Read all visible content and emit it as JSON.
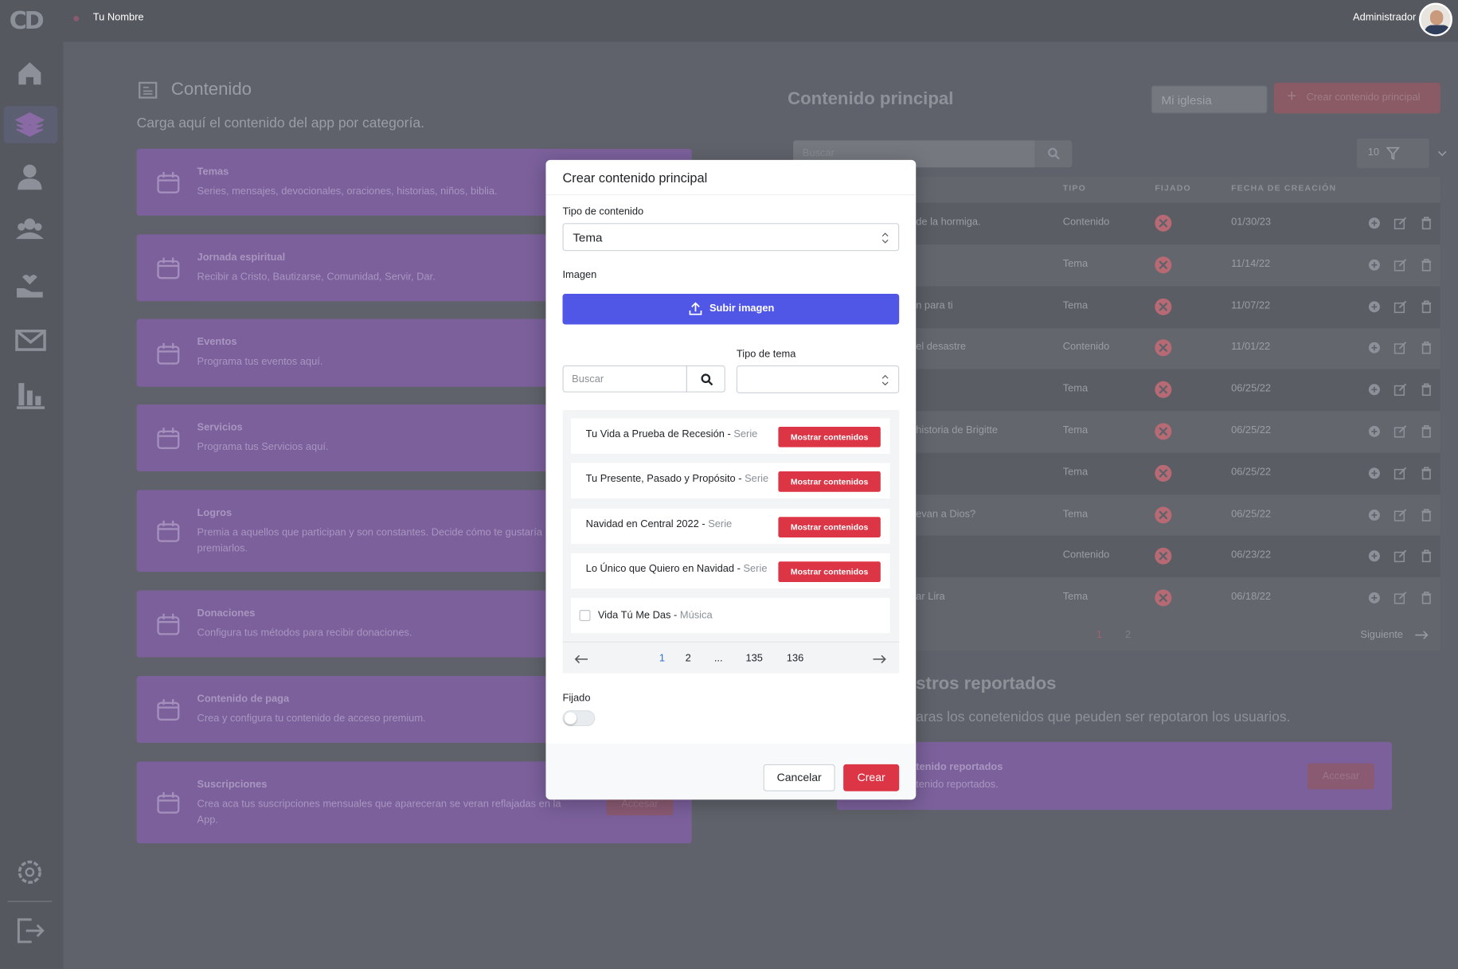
{
  "header": {
    "brand": "CD",
    "user_name": "Tu Nombre",
    "role": "Administrador"
  },
  "content_panel": {
    "title": "Contenido",
    "subtitle": "Carga aquí el contenido del app por categoría.",
    "categories": [
      {
        "title": "Temas",
        "description": "Series, mensajes, devocionales, oraciones, historias, niños, biblia."
      },
      {
        "title": "Jornada espiritual",
        "description": "Recibir a Cristo, Bautizarse, Comunidad, Servir, Dar."
      },
      {
        "title": "Eventos",
        "description": "Programa tus eventos aquí."
      },
      {
        "title": "Servicios",
        "description": "Programa tus Servicios aquí."
      },
      {
        "title": "Logros",
        "description": "Premia a aquellos que participan y son constantes. Decide cómo te gustaría premiarlos."
      },
      {
        "title": "Donaciones",
        "description": "Configura tus métodos para recibir donaciones."
      },
      {
        "title": "Contenido de paga",
        "description": "Crea y configura tu contenido de acceso premium."
      },
      {
        "title": "Suscripciones",
        "description": "Crea aca tus suscripciones mensuales que apareceran se veran reflajadas en la App.",
        "button": "Accesar"
      }
    ]
  },
  "main_content": {
    "title": "Contenido principal",
    "church_select": "Mi iglesia",
    "create_button": "Crear contenido principal",
    "search_placeholder": "Buscar",
    "page_size": "10",
    "columns": [
      "TIPO",
      "FIJADO",
      "FECHA DE CREACIÓN"
    ],
    "rows": [
      {
        "title": "de la hormiga.",
        "type": "Contenido",
        "date": "01/30/23"
      },
      {
        "type": "Tema",
        "date": "11/14/22"
      },
      {
        "title": "n para ti",
        "type": "Tema",
        "date": "11/07/22"
      },
      {
        "title": "el desastre",
        "type": "Contenido",
        "date": "11/01/22"
      },
      {
        "type": "Tema",
        "date": "06/25/22"
      },
      {
        "title": "historia de Brigitte",
        "type": "Tema",
        "date": "06/25/22"
      },
      {
        "type": "Tema",
        "date": "06/25/22"
      },
      {
        "title": "evan a Dios?",
        "type": "Tema",
        "date": "06/25/22"
      },
      {
        "type": "Contenido",
        "date": "06/23/22"
      },
      {
        "title": "ar Lira",
        "type": "Tema",
        "date": "06/18/22"
      }
    ],
    "pages": [
      "1",
      "2"
    ],
    "next": "Siguiente"
  },
  "reported": {
    "title": "stros reportados",
    "subtitle": "aras los conetenidos que peuden ser repotaron los usuarios.",
    "card_title": "tenido reportados",
    "card_description": "tenido reportados.",
    "button": "Accesar"
  },
  "modal": {
    "title": "Crear contenido principal",
    "content_type_label": "Tipo de contenido",
    "content_type_value": "Tema",
    "image_label": "Imagen",
    "upload_button": "Subir imagen",
    "search_placeholder": "Buscar",
    "topic_type_label": "Tipo de tema",
    "items": [
      {
        "title": "Tu Vida a Prueba de Recesión",
        "kind": "Serie",
        "button": "Mostrar contenidos"
      },
      {
        "title": "Tu Presente, Pasado y Propósito",
        "kind": "Serie",
        "button": "Mostrar contenidos"
      },
      {
        "title": "Navidad en Central 2022",
        "kind": "Serie",
        "button": "Mostrar contenidos"
      },
      {
        "title": "Lo Único que Quiero en Navidad",
        "kind": "Serie",
        "button": "Mostrar contenidos"
      },
      {
        "title": "Vida Tú Me Das",
        "kind": "Música"
      }
    ],
    "pages": [
      "1",
      "2",
      "...",
      "135",
      "136"
    ],
    "pinned_label": "Fijado",
    "cancel": "Cancelar",
    "create": "Crear"
  }
}
